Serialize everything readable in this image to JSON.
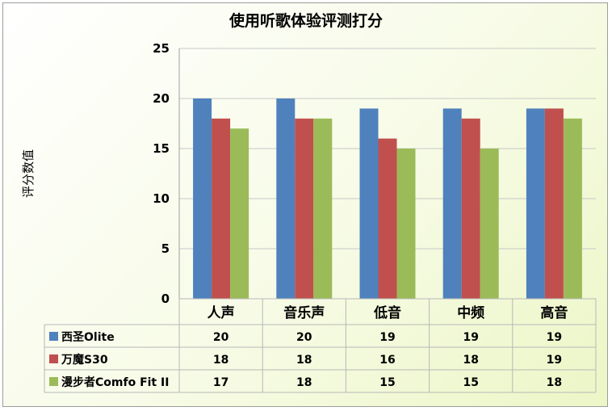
{
  "chart_data": {
    "type": "bar",
    "title": "使用听歌体验评测打分",
    "ylabel": "评分数值",
    "xlabel": "",
    "ylim": [
      0,
      25
    ],
    "yticks": [
      0,
      5,
      10,
      15,
      20,
      25
    ],
    "grid": true,
    "legend": "data-table-left",
    "categories": [
      "人声",
      "音乐声",
      "低音",
      "中频",
      "高音"
    ],
    "series": [
      {
        "name": "西圣Olite",
        "color": "#4f81bd",
        "values": [
          20,
          20,
          19,
          19,
          19
        ]
      },
      {
        "name": "万魔S30",
        "color": "#c0504d",
        "values": [
          18,
          18,
          16,
          18,
          19
        ]
      },
      {
        "name": "漫步者Comfo Fit II",
        "color": "#9bbb59",
        "values": [
          17,
          18,
          15,
          15,
          18
        ]
      }
    ]
  }
}
